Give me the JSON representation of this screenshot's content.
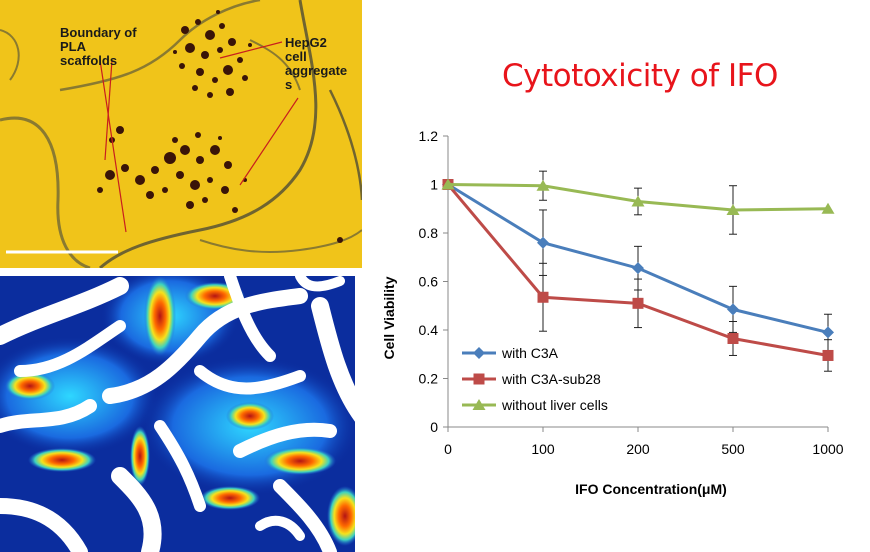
{
  "micrograph": {
    "label_boundary": "Boundary of\nPLA\nscaffolds",
    "label_cells": "HepG2\ncell\naggregate\ns"
  },
  "chart_data": {
    "type": "line",
    "title": "Cytotoxicity of IFO",
    "xlabel": "IFO Concentration(μM)",
    "ylabel": "Cell Viability",
    "categories": [
      "0",
      "100",
      "200",
      "500",
      "1000"
    ],
    "ylim": [
      0,
      1.2
    ],
    "yticks": [
      "0",
      "0.2",
      "0.4",
      "0.6",
      "0.8",
      "1",
      "1.2"
    ],
    "legend_position": "bottom-left",
    "series": [
      {
        "name": "with C3A",
        "color": "#4a7ebb",
        "marker": "diamond",
        "values": [
          1.0,
          0.76,
          0.655,
          0.485,
          0.39
        ],
        "errors": [
          0,
          0.135,
          0.09,
          0.095,
          0.075
        ]
      },
      {
        "name": "with C3A-sub28",
        "color": "#be4b48",
        "marker": "square",
        "values": [
          1.0,
          0.535,
          0.51,
          0.365,
          0.295
        ],
        "errors": [
          0,
          0.14,
          0.1,
          0.07,
          0.065
        ]
      },
      {
        "name": "without liver cells",
        "color": "#98b954",
        "marker": "triangle",
        "values": [
          1.0,
          0.995,
          0.93,
          0.895,
          0.9
        ],
        "errors": [
          0,
          0.06,
          0.055,
          0.1,
          0
        ]
      }
    ]
  }
}
